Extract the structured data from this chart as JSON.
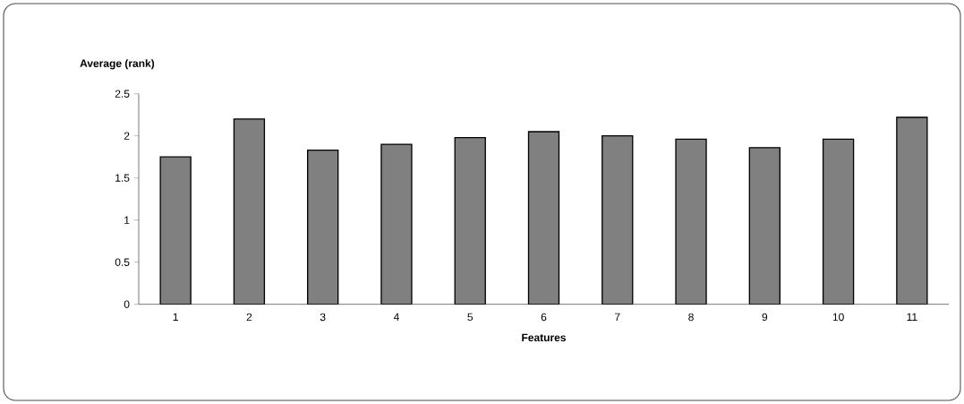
{
  "chart_data": {
    "type": "bar",
    "xlabel": "Features",
    "ylabel": "Average (rank)",
    "categories": [
      "1",
      "2",
      "3",
      "4",
      "5",
      "6",
      "7",
      "8",
      "9",
      "10",
      "11"
    ],
    "values": [
      1.75,
      2.2,
      1.83,
      1.9,
      1.98,
      2.05,
      2.0,
      1.96,
      1.86,
      1.96,
      2.22
    ],
    "color": "#808080",
    "ylim": [
      0,
      2.5
    ],
    "yticks": [
      0,
      0.5,
      1,
      1.5,
      2,
      2.5
    ],
    "grid": false
  }
}
